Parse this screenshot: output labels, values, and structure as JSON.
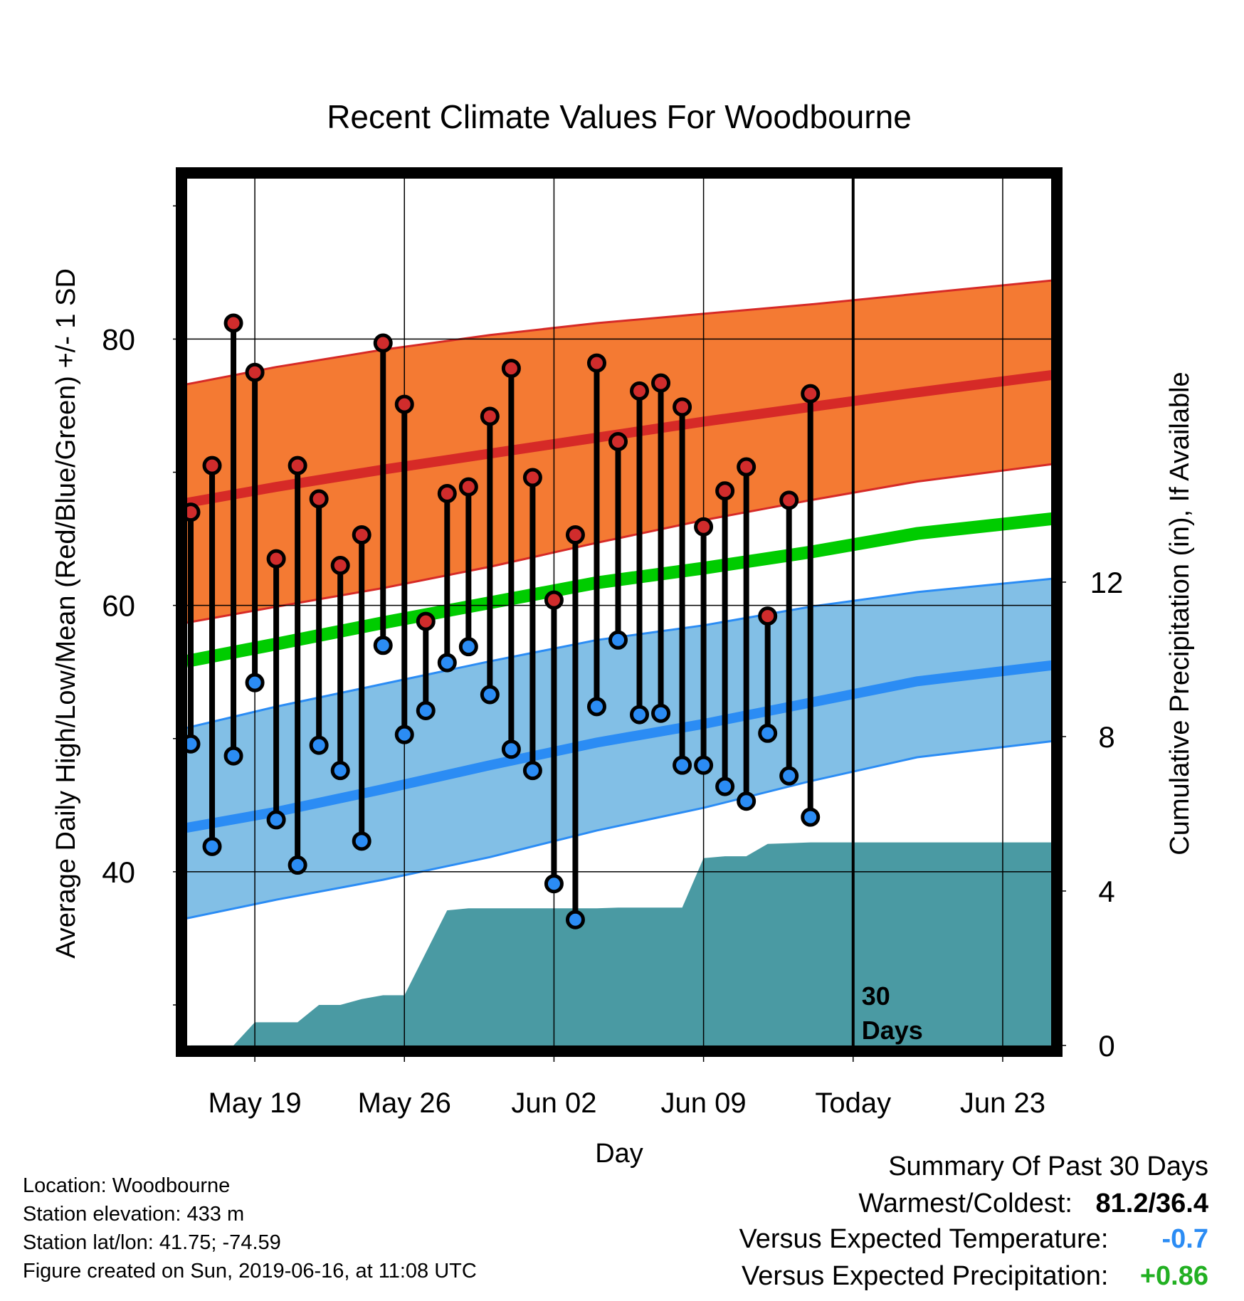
{
  "chart_data": {
    "type": "line",
    "title": "Recent Climate Values For Woodbourne",
    "xlabel": "Day",
    "ylabel_left": "Average Daily High/Low/Mean (Red/Blue/Green) +/- 1 SD",
    "ylabel_right": "Cumulative Precipitation (in), If Available",
    "x_tick_labels": [
      "May 19",
      "May 26",
      "Jun 02",
      "Jun 09",
      "Today",
      "Jun 23"
    ],
    "x_tick_days": [
      4,
      11,
      18,
      25,
      32,
      39
    ],
    "x_range_days": [
      0.8,
      41.3
    ],
    "y_left_range": [
      26.9,
      92.1
    ],
    "y_left_ticks": [
      40,
      60,
      80
    ],
    "y_right_range": [
      -0.02,
      22.47
    ],
    "y_right_ticks": [
      0,
      4,
      8,
      12
    ],
    "today_day": 32,
    "today_annotation": [
      "30",
      "Days"
    ],
    "grid": true,
    "normal_high": {
      "day": [
        0.8,
        5,
        10,
        15,
        20,
        25,
        30,
        35,
        41.3
      ],
      "mean": [
        67.7,
        68.9,
        70.2,
        71.4,
        72.6,
        73.8,
        74.9,
        76.0,
        77.3
      ],
      "upper": [
        76.6,
        77.9,
        79.2,
        80.3,
        81.2,
        81.9,
        82.6,
        83.4,
        84.4
      ],
      "lower": [
        58.7,
        59.9,
        61.3,
        62.9,
        64.7,
        66.4,
        67.9,
        69.3,
        70.6
      ]
    },
    "normal_mean": {
      "day": [
        0.8,
        5,
        10,
        15,
        20,
        25,
        30,
        35,
        41.3
      ],
      "mean": [
        55.8,
        57.1,
        58.7,
        60.2,
        61.7,
        62.8,
        64.0,
        65.4,
        66.5
      ]
    },
    "normal_low": {
      "day": [
        0.8,
        5,
        10,
        15,
        20,
        25,
        30,
        35,
        41.3
      ],
      "mean": [
        43.3,
        44.5,
        46.2,
        48.0,
        49.7,
        51.1,
        52.7,
        54.3,
        55.5
      ],
      "upper": [
        50.8,
        52.4,
        54.1,
        55.8,
        57.4,
        58.5,
        59.9,
        61.0,
        62.0
      ],
      "lower": [
        36.5,
        37.9,
        39.4,
        41.1,
        43.1,
        44.8,
        46.8,
        48.6,
        49.8
      ]
    },
    "observed": {
      "day": [
        1,
        2,
        3,
        4,
        5,
        6,
        7,
        8,
        9,
        10,
        11,
        12,
        13,
        14,
        15,
        16,
        17,
        18,
        19,
        20,
        21,
        22,
        23,
        24,
        25,
        26,
        27,
        28,
        29,
        30,
        31
      ],
      "high": [
        67.0,
        70.5,
        81.2,
        77.5,
        63.5,
        70.5,
        68.0,
        63.0,
        65.3,
        79.7,
        75.1,
        58.8,
        68.4,
        68.9,
        74.2,
        77.8,
        69.6,
        60.4,
        65.3,
        78.2,
        72.3,
        76.1,
        76.7,
        74.9,
        65.9,
        68.6,
        70.4,
        59.2,
        67.9,
        75.9,
        null
      ],
      "low": [
        49.6,
        41.9,
        48.7,
        54.2,
        43.9,
        40.5,
        49.5,
        47.6,
        42.3,
        57.0,
        50.3,
        52.1,
        55.7,
        56.9,
        53.3,
        49.2,
        47.6,
        39.1,
        36.4,
        52.4,
        57.4,
        51.8,
        51.9,
        48.0,
        48.0,
        46.4,
        45.3,
        50.4,
        47.2,
        44.1,
        null
      ]
    },
    "cumulative_precip": {
      "day": [
        1,
        2,
        3,
        4,
        5,
        6,
        7,
        8,
        9,
        10,
        11,
        12,
        13,
        14,
        15,
        16,
        17,
        18,
        19,
        20,
        21,
        22,
        23,
        24,
        25,
        26,
        27,
        28,
        29,
        30,
        31,
        32,
        41.3
      ],
      "value": [
        0,
        0,
        0,
        0.6,
        0.6,
        0.6,
        1.05,
        1.05,
        1.2,
        1.3,
        1.3,
        2.4,
        3.5,
        3.55,
        3.55,
        3.55,
        3.55,
        3.55,
        3.55,
        3.55,
        3.57,
        3.57,
        3.57,
        3.57,
        4.85,
        4.9,
        4.9,
        5.22,
        5.24,
        5.26,
        5.26,
        5.26,
        5.26
      ]
    },
    "colors": {
      "high_band": "#f47a33",
      "high_line": "#d62a27",
      "mean_line": "#00cc00",
      "low_band": "#82bfe6",
      "low_line": "#2b8cf4",
      "precip_fill": "#4a9aa3",
      "high_marker": "#d02c2c",
      "low_marker": "#2b8cf4"
    }
  },
  "info": {
    "location": "Location: Woodbourne",
    "elevation": "Station elevation: 433 m",
    "latlon": "Station lat/lon: 41.75; -74.59",
    "created": "Figure created on Sun, 2019-06-16, at 11:08 UTC"
  },
  "summary": {
    "title": "Summary Of Past 30 Days",
    "warmest_coldest_label": "Warmest/Coldest:",
    "warmest_coldest_value": "81.2/36.4",
    "temp_label": "Versus Expected Temperature:",
    "temp_value": "-0.7",
    "temp_color": "#2b8cf4",
    "precip_label": "Versus Expected Precipitation:",
    "precip_value": "+0.86",
    "precip_color": "#22b022"
  }
}
